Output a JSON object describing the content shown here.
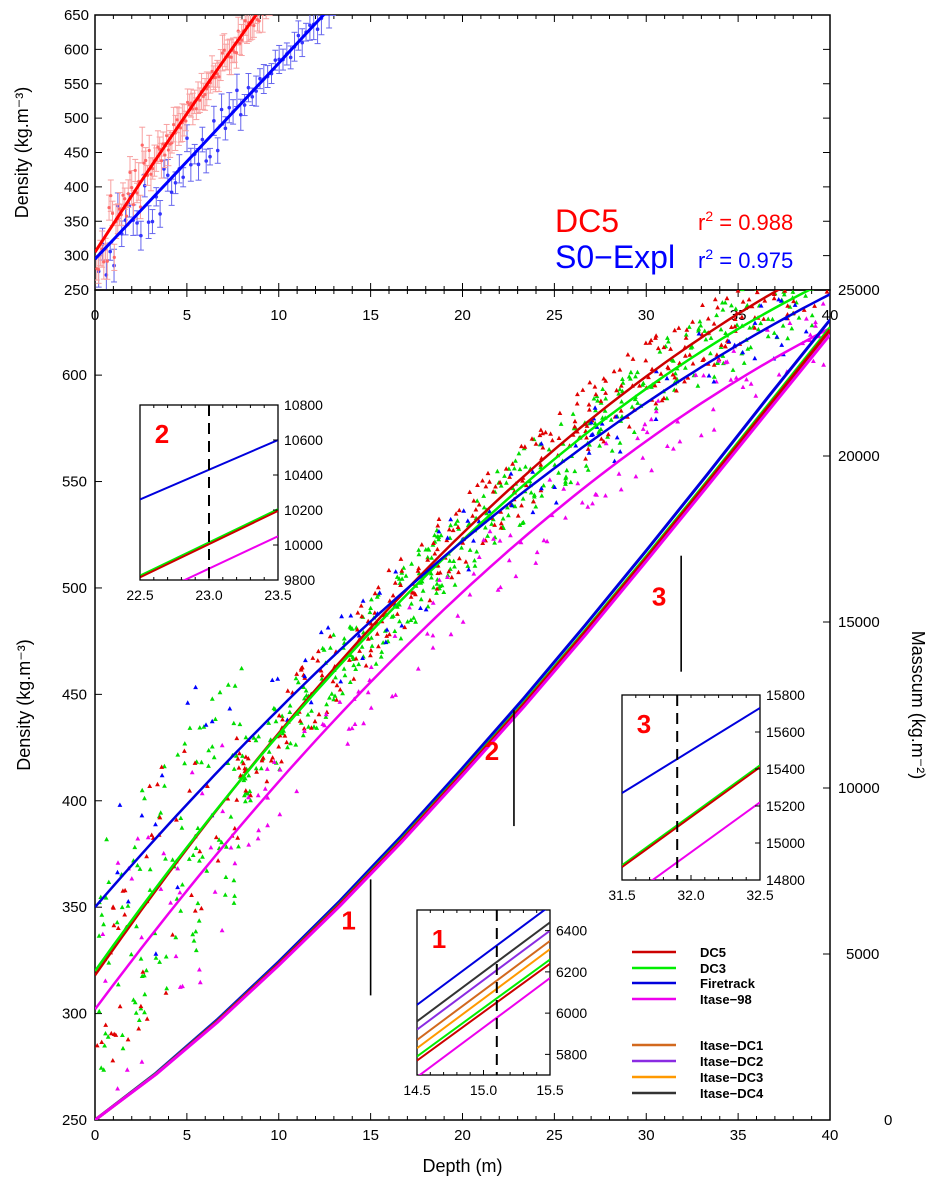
{
  "chart_data": [
    {
      "id": "top",
      "type": "scatter",
      "xlabel": "",
      "ylabel": "Density (kg.m⁻³)",
      "xlim": [
        0,
        40
      ],
      "ylim": [
        250,
        650
      ],
      "xticks": [
        0,
        5,
        10,
        15,
        20,
        25,
        30,
        35,
        40
      ],
      "yticks": [
        250,
        300,
        350,
        400,
        450,
        500,
        550,
        600,
        650
      ],
      "series": [
        {
          "name": "DC5",
          "color": "#ff0000",
          "point_color": "#ff6666",
          "err_color": "#f8a0a0",
          "fit": [
            305,
            41.55,
            -0.25
          ],
          "r2_label": "r² = 0.988"
        },
        {
          "name": "S0−Expl",
          "color": "#0000ff",
          "point_color": "#3333ff",
          "err_color": "#6666ee",
          "fit": [
            295,
            28.25,
            0.025
          ],
          "r2_label": "r² = 0.975",
          "x_max": 40
        }
      ],
      "legend_placement": "bottom-right"
    },
    {
      "id": "main",
      "type": "line",
      "xlabel": "Depth (m)",
      "ylabel": "Density (kg.m⁻³)",
      "y2label": "Masscum (kg.m⁻²)",
      "xlim": [
        0,
        40
      ],
      "ylim": [
        250,
        640
      ],
      "y2lim": [
        0,
        25000
      ],
      "xticks": [
        0,
        5,
        10,
        15,
        20,
        25,
        30,
        35,
        40
      ],
      "yticks": [
        250,
        300,
        350,
        400,
        450,
        500,
        550,
        600
      ],
      "y2ticks": [
        0,
        5000,
        10000,
        15000,
        20000,
        25000
      ],
      "density_fits": [
        {
          "name": "DC5",
          "color": "#cc0000",
          "fit": [
            318,
            12.38,
            -0.1
          ],
          "scatter_color": "#e00000"
        },
        {
          "name": "DC3",
          "color": "#00ee00",
          "fit": [
            320,
            12.12,
            -0.1
          ],
          "scatter_color": "#00dd00"
        },
        {
          "name": "Firetrack",
          "color": "#0000dd",
          "fit": [
            350,
            10.0,
            -0.07
          ],
          "scatter_color": "#0000ff"
        },
        {
          "name": "Itase−98",
          "color": "#ee00ee",
          "fit": [
            302,
            11.6,
            -0.09
          ],
          "scatter_color": "#ee00ee"
        }
      ],
      "masscum_curves": [
        {
          "name": "Firetrack",
          "color": "#0000dd",
          "values": [
            0,
            1420,
            3030,
            4770,
            6600,
            8550,
            10600,
            12700,
            14900,
            17150,
            19450,
            21800,
            24100
          ]
        },
        {
          "name": "DC3",
          "color": "#00ee00",
          "values": [
            0,
            1400,
            2990,
            4710,
            6520,
            8450,
            10480,
            12560,
            14740,
            16980,
            19250,
            21560,
            23870
          ]
        },
        {
          "name": "DC5",
          "color": "#cc0000",
          "values": [
            0,
            1390,
            2980,
            4700,
            6500,
            8420,
            10450,
            12520,
            14700,
            16930,
            19200,
            21500,
            23800
          ]
        },
        {
          "name": "Itase−98",
          "color": "#ee00ee",
          "values": [
            0,
            1380,
            2950,
            4660,
            6450,
            8360,
            10380,
            12440,
            14600,
            16830,
            19090,
            21380,
            23650
          ]
        }
      ],
      "masscum_x": [
        0,
        3.33,
        6.67,
        10,
        13.33,
        16.67,
        20,
        23.33,
        26.67,
        30,
        33.33,
        36.67,
        40
      ],
      "legend": [
        {
          "name": "DC5",
          "color": "#cc0000"
        },
        {
          "name": "DC3",
          "color": "#00ee00"
        },
        {
          "name": "Firetrack",
          "color": "#0000dd"
        },
        {
          "name": "Itase−98",
          "color": "#ee00ee"
        },
        {
          "name": "Itase−DC1",
          "color": "#d2691e"
        },
        {
          "name": "Itase−DC2",
          "color": "#8a2be2"
        },
        {
          "name": "Itase−DC3",
          "color": "#ff9900"
        },
        {
          "name": "Itase−DC4",
          "color": "#333333"
        }
      ],
      "legend_placement": "bottom-right",
      "callouts": [
        {
          "label": "1",
          "x": 15.0,
          "y2": 5500
        },
        {
          "label": "2",
          "x": 22.8,
          "y2": 10600
        },
        {
          "label": "3",
          "x": 31.9,
          "y2": 15250
        }
      ]
    },
    {
      "id": "inset2",
      "type": "line",
      "label": "2",
      "xlim": [
        22.5,
        23.5
      ],
      "ylim": [
        9800,
        10800
      ],
      "xticks": [
        "22.5",
        "23.0",
        "23.5"
      ],
      "yticks": [
        9800,
        10000,
        10200,
        10400,
        10600,
        10800
      ],
      "marker_x": 23.0,
      "lines": [
        {
          "name": "Firetrack",
          "color": "#0000dd",
          "y": [
            10260,
            10600
          ]
        },
        {
          "name": "DC3",
          "color": "#00ee00",
          "y": [
            9825,
            10205
          ]
        },
        {
          "name": "DC5",
          "color": "#cc0000",
          "y": [
            9815,
            10195
          ]
        },
        {
          "name": "Itase−98",
          "color": "#ee00ee",
          "y": [
            9680,
            10050
          ]
        }
      ]
    },
    {
      "id": "inset3",
      "type": "line",
      "label": "3",
      "xlim": [
        31.5,
        32.5
      ],
      "ylim": [
        14800,
        15800
      ],
      "xticks": [
        "31.5",
        "32.0",
        "32.5"
      ],
      "yticks": [
        14800,
        15000,
        15200,
        15400,
        15600,
        15800
      ],
      "marker_x": 31.9,
      "lines": [
        {
          "name": "Firetrack",
          "color": "#0000dd",
          "y": [
            15270,
            15730
          ]
        },
        {
          "name": "DC3",
          "color": "#00ee00",
          "y": [
            14880,
            15420
          ]
        },
        {
          "name": "DC5",
          "color": "#cc0000",
          "y": [
            14870,
            15410
          ]
        },
        {
          "name": "Itase−98",
          "color": "#ee00ee",
          "y": [
            14680,
            15220
          ]
        }
      ]
    },
    {
      "id": "inset1",
      "type": "line",
      "label": "1",
      "xlim": [
        14.5,
        15.5
      ],
      "ylim": [
        5700,
        6500
      ],
      "xticks": [
        "14.5",
        "15.0",
        "15.5"
      ],
      "yticks": [
        5800,
        6000,
        6200,
        6400
      ],
      "marker_x": 15.1,
      "lines": [
        {
          "name": "Firetrack",
          "color": "#0000dd",
          "y": [
            6040,
            6520
          ]
        },
        {
          "name": "Itase−DC4",
          "color": "#333333",
          "y": [
            5960,
            6440
          ]
        },
        {
          "name": "Itase−DC2",
          "color": "#8a2be2",
          "y": [
            5920,
            6400
          ]
        },
        {
          "name": "Itase−DC1",
          "color": "#d2691e",
          "y": [
            5870,
            6350
          ]
        },
        {
          "name": "Itase−DC3",
          "color": "#ff9900",
          "y": [
            5830,
            6310
          ]
        },
        {
          "name": "DC3",
          "color": "#00ee00",
          "y": [
            5790,
            6260
          ]
        },
        {
          "name": "DC5",
          "color": "#cc0000",
          "y": [
            5770,
            6240
          ]
        },
        {
          "name": "Itase−98",
          "color": "#ee00ee",
          "y": [
            5690,
            6170
          ]
        }
      ]
    }
  ]
}
